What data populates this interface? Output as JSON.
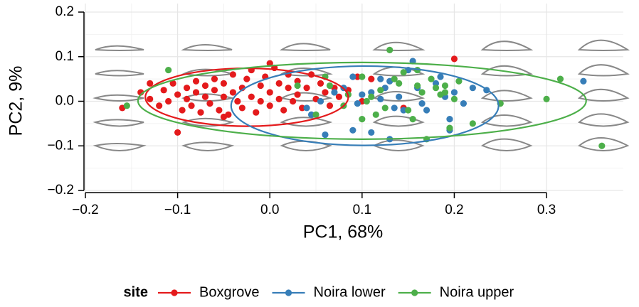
{
  "chart_data": {
    "type": "scatter",
    "x_label": "PC1, 68%",
    "y_label": "PC2, 9%",
    "legend_title": "site",
    "legend_position": "bottom",
    "grid": true,
    "xlim": [
      -0.2,
      0.36
    ],
    "ylim": [
      -0.2,
      0.2
    ],
    "xticks": [
      {
        "value": -0.2,
        "label": "−0.2"
      },
      {
        "value": -0.1,
        "label": "−0.1"
      },
      {
        "value": 0,
        "label": "0.0"
      },
      0.1,
      0.2,
      0.3
    ],
    "yticks": [
      {
        "value": -0.2,
        "label": "−0.2"
      },
      {
        "value": -0.1,
        "label": "−0.1"
      },
      {
        "value": 0,
        "label": "0.0"
      },
      0.1,
      0.2
    ],
    "series": [
      {
        "name": "Boxgrove",
        "color": "#e41a1c",
        "ellipse": {
          "cx": -0.025,
          "cy": 0.009,
          "rx": 0.11,
          "ry": 0.065
        },
        "x": [
          -0.16,
          -0.14,
          -0.13,
          -0.12,
          -0.115,
          -0.11,
          -0.105,
          -0.1,
          -0.1,
          -0.095,
          -0.09,
          -0.09,
          -0.085,
          -0.08,
          -0.08,
          -0.075,
          -0.07,
          -0.07,
          -0.065,
          -0.06,
          -0.06,
          -0.055,
          -0.05,
          -0.05,
          -0.045,
          -0.04,
          -0.04,
          -0.035,
          -0.03,
          -0.03,
          -0.025,
          -0.02,
          -0.02,
          -0.015,
          -0.01,
          -0.01,
          -0.005,
          0.0,
          0.0,
          0.005,
          0.01,
          0.01,
          0.015,
          0.02,
          0.02,
          0.025,
          0.03,
          0.03,
          0.035,
          0.04,
          0.045,
          0.05,
          0.055,
          0.06,
          0.065,
          0.07,
          0.075,
          0.085,
          0.095,
          0.1,
          0.11,
          0.2,
          0.145,
          -0.13,
          0.0,
          -0.05
        ],
        "y": [
          -0.015,
          0.02,
          0.005,
          -0.01,
          0.025,
          0.0,
          0.04,
          -0.07,
          0.015,
          -0.02,
          0.03,
          0.005,
          -0.01,
          0.045,
          0.02,
          -0.025,
          0.01,
          0.035,
          -0.005,
          0.05,
          0.025,
          -0.02,
          0.01,
          0.04,
          -0.03,
          0.02,
          0.06,
          0.0,
          0.03,
          -0.015,
          0.05,
          0.01,
          0.07,
          -0.025,
          0.035,
          0.0,
          0.055,
          0.02,
          -0.01,
          0.075,
          0.04,
          0.005,
          -0.02,
          0.03,
          0.06,
          0.0,
          0.045,
          0.015,
          -0.015,
          0.03,
          0.06,
          0.005,
          0.04,
          0.02,
          -0.01,
          0.03,
          0.01,
          0.025,
          0.055,
          0.0,
          0.05,
          0.095,
          -0.015,
          0.04,
          0.085,
          -0.035
        ]
      },
      {
        "name": "Noira lower",
        "color": "#377eb8",
        "ellipse": {
          "cx": 0.103,
          "cy": -0.01,
          "rx": 0.145,
          "ry": 0.089
        },
        "x": [
          0.04,
          0.045,
          0.06,
          0.055,
          0.07,
          0.08,
          0.09,
          0.095,
          0.1,
          0.11,
          0.12,
          0.125,
          0.13,
          0.135,
          0.14,
          0.145,
          0.15,
          0.155,
          0.16,
          0.165,
          0.17,
          0.18,
          0.185,
          0.19,
          0.195,
          0.195,
          0.11,
          0.09,
          0.13,
          0.2,
          0.21,
          0.22,
          0.235,
          0.34,
          0.12
        ],
        "y": [
          -0.015,
          -0.03,
          -0.075,
          0.0,
          0.02,
          0.03,
          0.055,
          -0.005,
          0.015,
          0.02,
          0.005,
          0.03,
          0.045,
          -0.015,
          0.01,
          -0.02,
          0.07,
          0.09,
          0.03,
          -0.005,
          -0.02,
          0.04,
          0.055,
          0.01,
          -0.04,
          -0.065,
          -0.07,
          -0.065,
          -0.085,
          0.02,
          -0.005,
          0.03,
          0.025,
          0.045,
          0.05
        ]
      },
      {
        "name": "Noira upper",
        "color": "#4daf4a",
        "ellipse": {
          "cx": 0.1,
          "cy": 0.001,
          "rx": 0.243,
          "ry": 0.086
        },
        "x": [
          -0.155,
          -0.11,
          0.03,
          0.06,
          0.065,
          0.08,
          0.085,
          0.1,
          0.105,
          0.11,
          0.115,
          0.12,
          0.13,
          0.135,
          0.14,
          0.145,
          0.15,
          0.155,
          0.16,
          0.165,
          0.17,
          0.175,
          0.18,
          0.185,
          0.19,
          0.19,
          0.195,
          0.2,
          0.205,
          0.22,
          0.25,
          0.3,
          0.315,
          0.36,
          0.16,
          0.1,
          0.05,
          0.125
        ],
        "y": [
          -0.01,
          0.07,
          0.035,
          0.055,
          0.035,
          -0.01,
          0.015,
          0.055,
          0.0,
          0.01,
          -0.03,
          0.025,
          0.115,
          0.05,
          0.04,
          0.065,
          -0.02,
          -0.04,
          0.035,
          0.02,
          -0.085,
          0.05,
          0.03,
          0.015,
          0.02,
          0.035,
          -0.06,
          0.005,
          0.045,
          -0.05,
          -0.005,
          0.005,
          0.05,
          -0.1,
          0.07,
          -0.04,
          -0.03,
          -0.015
        ]
      }
    ]
  }
}
